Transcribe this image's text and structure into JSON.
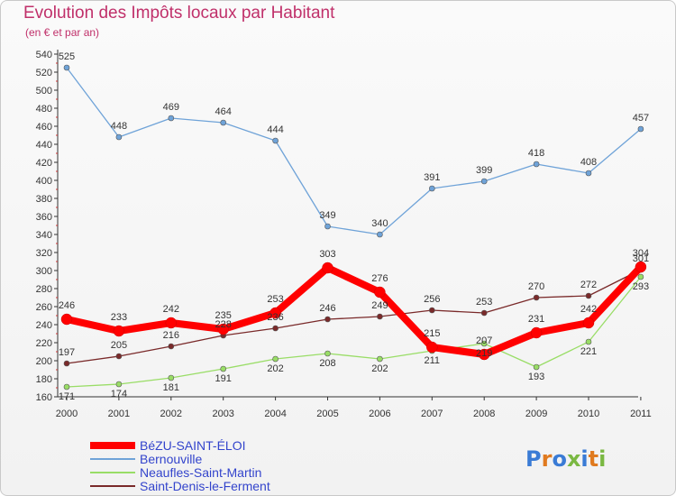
{
  "title": "Evolution des Impôts locaux par Habitant",
  "subtitle": "(en € et par an)",
  "logo_text": "Proxiti",
  "chart_data": {
    "type": "line",
    "title": "Evolution des Impôts locaux par Habitant",
    "subtitle": "(en € et par an)",
    "x": [
      "2000",
      "2001",
      "2002",
      "2003",
      "2004",
      "2005",
      "2006",
      "2007",
      "2008",
      "2009",
      "2010",
      "2011"
    ],
    "ylim": [
      160,
      540
    ],
    "yticks": [
      160,
      180,
      200,
      220,
      240,
      260,
      280,
      300,
      320,
      340,
      360,
      380,
      400,
      420,
      440,
      460,
      480,
      500,
      520,
      540
    ],
    "grid": false,
    "legend_position": "bottom-left",
    "series": [
      {
        "name": "BéZU-SAINT-ÉLOI",
        "color": "#ff0000",
        "values": [
          246,
          233,
          242,
          235,
          253,
          303,
          276,
          215,
          207,
          231,
          242,
          304
        ]
      },
      {
        "name": "Bernouville",
        "color": "#6fa3d8",
        "values": [
          525,
          448,
          469,
          464,
          444,
          349,
          340,
          391,
          399,
          418,
          408,
          457
        ]
      },
      {
        "name": "Neaufles-Saint-Martin",
        "color": "#99dd66",
        "values": [
          171,
          174,
          181,
          191,
          202,
          208,
          202,
          211,
          219,
          193,
          221,
          293
        ]
      },
      {
        "name": "Saint-Denis-le-Ferment",
        "color": "#7a2a2a",
        "values": [
          197,
          205,
          216,
          228,
          236,
          246,
          249,
          256,
          253,
          270,
          272,
          301
        ]
      }
    ]
  }
}
